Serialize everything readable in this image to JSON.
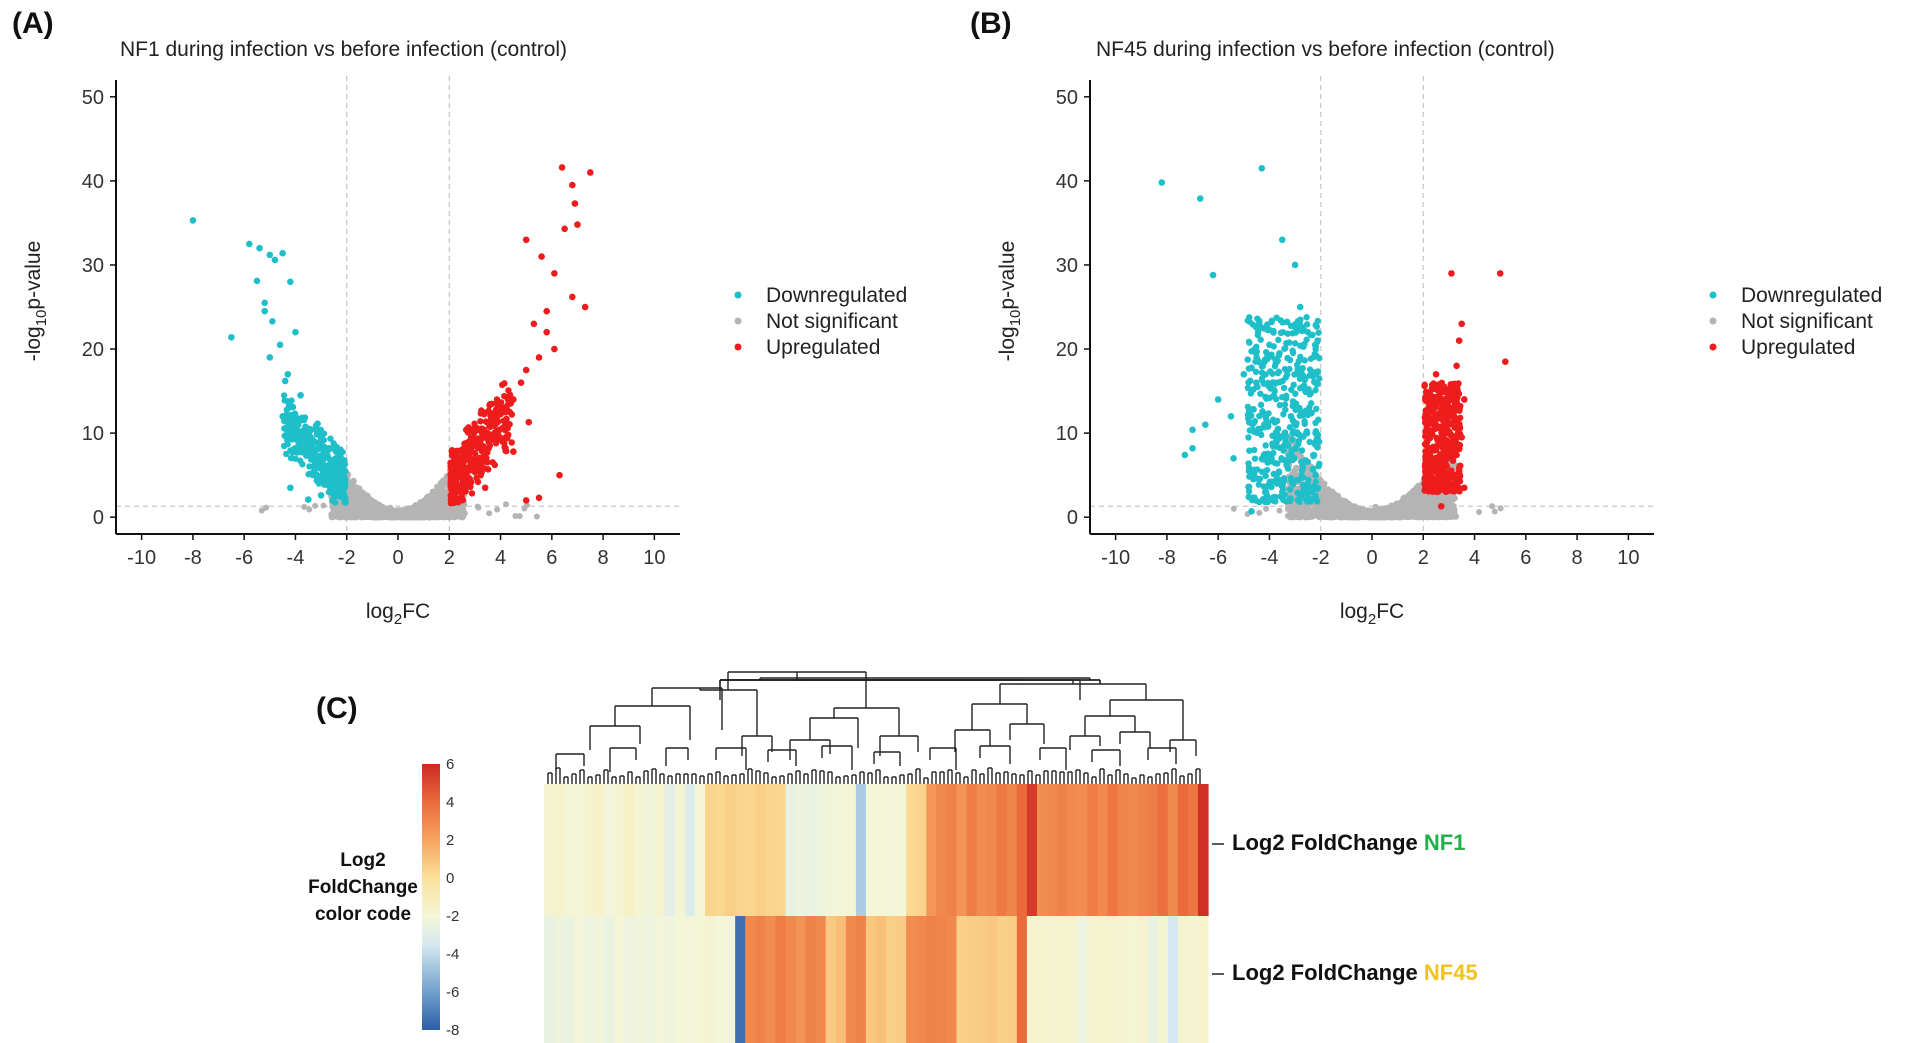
{
  "panel_labels": {
    "a": "(A)",
    "b": "(B)",
    "c": "(C)"
  },
  "colors": {
    "downregulated": "#1fbfca",
    "not_significant": "#b4b4b4",
    "upregulated": "#ee1c1c",
    "nf1_accent": "#22b04b",
    "nf45_accent": "#f2c21e"
  },
  "chart_data": [
    {
      "type": "scatter",
      "id": "A",
      "title": "NF1 during infection vs before infection (control)",
      "xlabel_main": "log",
      "xlabel_sub": "2",
      "xlabel_tail": "FC",
      "ylabel_pre": "-log",
      "ylabel_sub": "10",
      "ylabel_tail": "p-value",
      "xlim": [
        -11,
        11
      ],
      "ylim": [
        -2,
        52
      ],
      "xticks": [
        "-10",
        "-8",
        "-6",
        "-4",
        "-2",
        "0",
        "2",
        "4",
        "6",
        "8",
        "10"
      ],
      "yticks": [
        "0",
        "10",
        "20",
        "30",
        "40",
        "50"
      ],
      "vlines": [
        -2,
        2
      ],
      "hline": 1.3,
      "legend": [
        "Downregulated",
        "Not significant",
        "Upregulated"
      ],
      "series": [
        {
          "name": "Downregulated",
          "points": [
            [
              -8.0,
              35.3
            ],
            [
              -6.5,
              21.4
            ],
            [
              -5.8,
              32.5
            ],
            [
              -5.5,
              28.1
            ],
            [
              -5.4,
              32.0
            ],
            [
              -5.2,
              24.5
            ],
            [
              -5.0,
              31.2
            ],
            [
              -4.8,
              30.6
            ],
            [
              -4.5,
              31.4
            ],
            [
              -4.2,
              28.0
            ],
            [
              -4.0,
              22.0
            ],
            [
              -4.6,
              20.5
            ],
            [
              -5.0,
              19.0
            ],
            [
              -4.3,
              17.0
            ],
            [
              -3.8,
              14.5
            ],
            [
              -4.5,
              12.0
            ],
            [
              -4.0,
              9.5
            ],
            [
              -3.6,
              8.0
            ],
            [
              -3.2,
              6.5
            ],
            [
              -4.2,
              3.5
            ],
            [
              -3.5,
              2.1
            ],
            [
              -3.0,
              2.6
            ],
            [
              -2.5,
              3.0
            ],
            [
              -2.2,
              4.6
            ],
            [
              -5.2,
              25.5
            ],
            [
              -4.9,
              23.3
            ],
            [
              -4.4,
              16.2
            ],
            [
              -4.1,
              13.1
            ],
            [
              -3.9,
              11.7
            ],
            [
              -3.7,
              10.3
            ],
            [
              -3.3,
              9.1
            ]
          ]
        },
        {
          "name": "Upregulated",
          "points": [
            [
              7.5,
              41.0
            ],
            [
              6.4,
              41.6
            ],
            [
              6.8,
              39.5
            ],
            [
              6.9,
              37.3
            ],
            [
              7.0,
              34.8
            ],
            [
              6.5,
              34.3
            ],
            [
              5.0,
              33.0
            ],
            [
              5.6,
              31.0
            ],
            [
              6.1,
              29.0
            ],
            [
              7.3,
              25.0
            ],
            [
              6.8,
              26.2
            ],
            [
              5.8,
              24.5
            ],
            [
              5.3,
              23.0
            ],
            [
              5.8,
              22.0
            ],
            [
              6.1,
              20.0
            ],
            [
              5.5,
              19.0
            ],
            [
              5.0,
              17.5
            ],
            [
              4.8,
              16.0
            ],
            [
              4.5,
              14.0
            ],
            [
              4.2,
              12.5
            ],
            [
              3.8,
              11.0
            ],
            [
              3.5,
              10.0
            ],
            [
              3.2,
              8.5
            ],
            [
              2.8,
              7.0
            ],
            [
              2.5,
              6.0
            ],
            [
              2.3,
              5.0
            ],
            [
              2.2,
              4.0
            ],
            [
              5.0,
              2.0
            ],
            [
              5.5,
              2.3
            ],
            [
              6.3,
              5.0
            ],
            [
              3.4,
              3.5
            ],
            [
              4.5,
              7.8
            ],
            [
              5.1,
              11.3
            ],
            [
              4.3,
              9.8
            ]
          ]
        }
      ]
    },
    {
      "type": "scatter",
      "id": "B",
      "title": "NF45 during infection vs before infection (control)",
      "xlabel_main": "log",
      "xlabel_sub": "2",
      "xlabel_tail": "FC",
      "ylabel_pre": "-log",
      "ylabel_sub": "10",
      "ylabel_tail": "p-value",
      "xlim": [
        -11,
        11
      ],
      "ylim": [
        -2,
        52
      ],
      "xticks": [
        "-10",
        "-8",
        "-6",
        "-4",
        "-2",
        "0",
        "2",
        "4",
        "6",
        "8",
        "10"
      ],
      "yticks": [
        "0",
        "10",
        "20",
        "30",
        "40",
        "50"
      ],
      "vlines": [
        -2,
        2
      ],
      "hline": 1.3,
      "legend": [
        "Downregulated",
        "Not significant",
        "Upregulated"
      ],
      "series": [
        {
          "name": "Downregulated",
          "points": [
            [
              -8.2,
              39.8
            ],
            [
              -6.7,
              37.9
            ],
            [
              -4.3,
              41.5
            ],
            [
              -3.5,
              33.0
            ],
            [
              -6.2,
              28.8
            ],
            [
              -3.0,
              30.0
            ],
            [
              -2.8,
              25.0
            ],
            [
              -2.5,
              22.0
            ],
            [
              -4.0,
              20.5
            ],
            [
              -4.5,
              19.0
            ],
            [
              -5.0,
              17.0
            ],
            [
              -3.8,
              15.0
            ],
            [
              -6.0,
              14.0
            ],
            [
              -5.5,
              12.0
            ],
            [
              -4.2,
              11.0
            ],
            [
              -2.2,
              10.0
            ],
            [
              -7.0,
              10.4
            ],
            [
              -7.3,
              7.4
            ],
            [
              -7.0,
              8.2
            ],
            [
              -6.5,
              11.0
            ],
            [
              -5.4,
              7.0
            ],
            [
              -4.8,
              5.5
            ],
            [
              -4.0,
              4.0
            ],
            [
              -3.5,
              3.0
            ],
            [
              -3.2,
              2.2
            ],
            [
              -4.7,
              0.7
            ],
            [
              -2.2,
              5.0
            ]
          ]
        },
        {
          "name": "Upregulated",
          "points": [
            [
              3.1,
              29.0
            ],
            [
              5.0,
              29.0
            ],
            [
              3.5,
              23.0
            ],
            [
              3.4,
              21.0
            ],
            [
              5.2,
              18.5
            ],
            [
              3.3,
              18.0
            ],
            [
              2.5,
              17.0
            ],
            [
              2.8,
              15.0
            ],
            [
              3.6,
              14.0
            ],
            [
              2.2,
              12.0
            ],
            [
              3.0,
              11.0
            ],
            [
              3.5,
              9.5
            ],
            [
              2.5,
              8.0
            ],
            [
              2.3,
              6.0
            ],
            [
              3.2,
              5.0
            ],
            [
              2.7,
              1.3
            ],
            [
              3.6,
              3.5
            ],
            [
              2.3,
              4.0
            ],
            [
              3.3,
              7.4
            ]
          ]
        }
      ]
    },
    {
      "type": "heatmap",
      "id": "C",
      "colorbar_title": [
        "Log2",
        "FoldChange",
        "color code"
      ],
      "colorbar_ticks": [
        "6",
        "4",
        "2",
        "0",
        "-2",
        "-4",
        "-6",
        "-8"
      ],
      "colorbar_range": [
        -8,
        6
      ],
      "rows": [
        {
          "label": "Log2 FoldChange",
          "accent": "NF1"
        },
        {
          "label": "Log2 FoldChange",
          "accent": "NF45"
        }
      ],
      "rows_values": [
        [
          -1.8,
          -1.6,
          -1.9,
          -2.0,
          -1.7,
          -1.5,
          -2.1,
          -1.8,
          -1.4,
          -1.9,
          -2.2,
          -1.7,
          -2.8,
          -1.9,
          -3.2,
          -2.0,
          0.5,
          0.4,
          0.6,
          0.5,
          0.4,
          0.6,
          0.5,
          0.4,
          -2.6,
          -2.4,
          -2.5,
          -2.3,
          -2.1,
          -2.0,
          -1.9,
          -4.5,
          -2.0,
          -1.9,
          -2.1,
          -2.0,
          0.3,
          0.5,
          2.5,
          3.0,
          3.2,
          2.6,
          3.4,
          2.8,
          3.0,
          3.5,
          3.1,
          4.0,
          5.5,
          2.8,
          3.0,
          3.2,
          3.0,
          2.8,
          3.4,
          3.0,
          3.6,
          3.1,
          2.9,
          3.2,
          3.4,
          3.8,
          3.0,
          4.0,
          3.6,
          5.8
        ],
        [
          -2.6,
          -2.3,
          -2.5,
          -2.1,
          -2.4,
          -2.2,
          -2.5,
          -2.0,
          -2.3,
          -2.2,
          -2.4,
          -2.1,
          -2.2,
          -2.0,
          -2.1,
          -1.9,
          -1.8,
          -2.0,
          -2.1,
          -7.5,
          3.0,
          3.2,
          2.8,
          3.4,
          3.0,
          2.6,
          3.2,
          3.0,
          0.8,
          1.2,
          3.0,
          3.2,
          0.9,
          1.1,
          0.6,
          0.8,
          2.8,
          3.0,
          3.2,
          3.1,
          3.0,
          0.6,
          0.7,
          0.8,
          0.9,
          0.6,
          0.7,
          4.0,
          -1.6,
          -1.7,
          -1.8,
          -1.6,
          -1.7,
          -2.4,
          -1.8,
          -1.6,
          -1.7,
          -1.8,
          -1.9,
          -1.7,
          -2.6,
          -1.8,
          -3.5,
          -1.7,
          -1.8,
          -1.6
        ]
      ]
    }
  ]
}
